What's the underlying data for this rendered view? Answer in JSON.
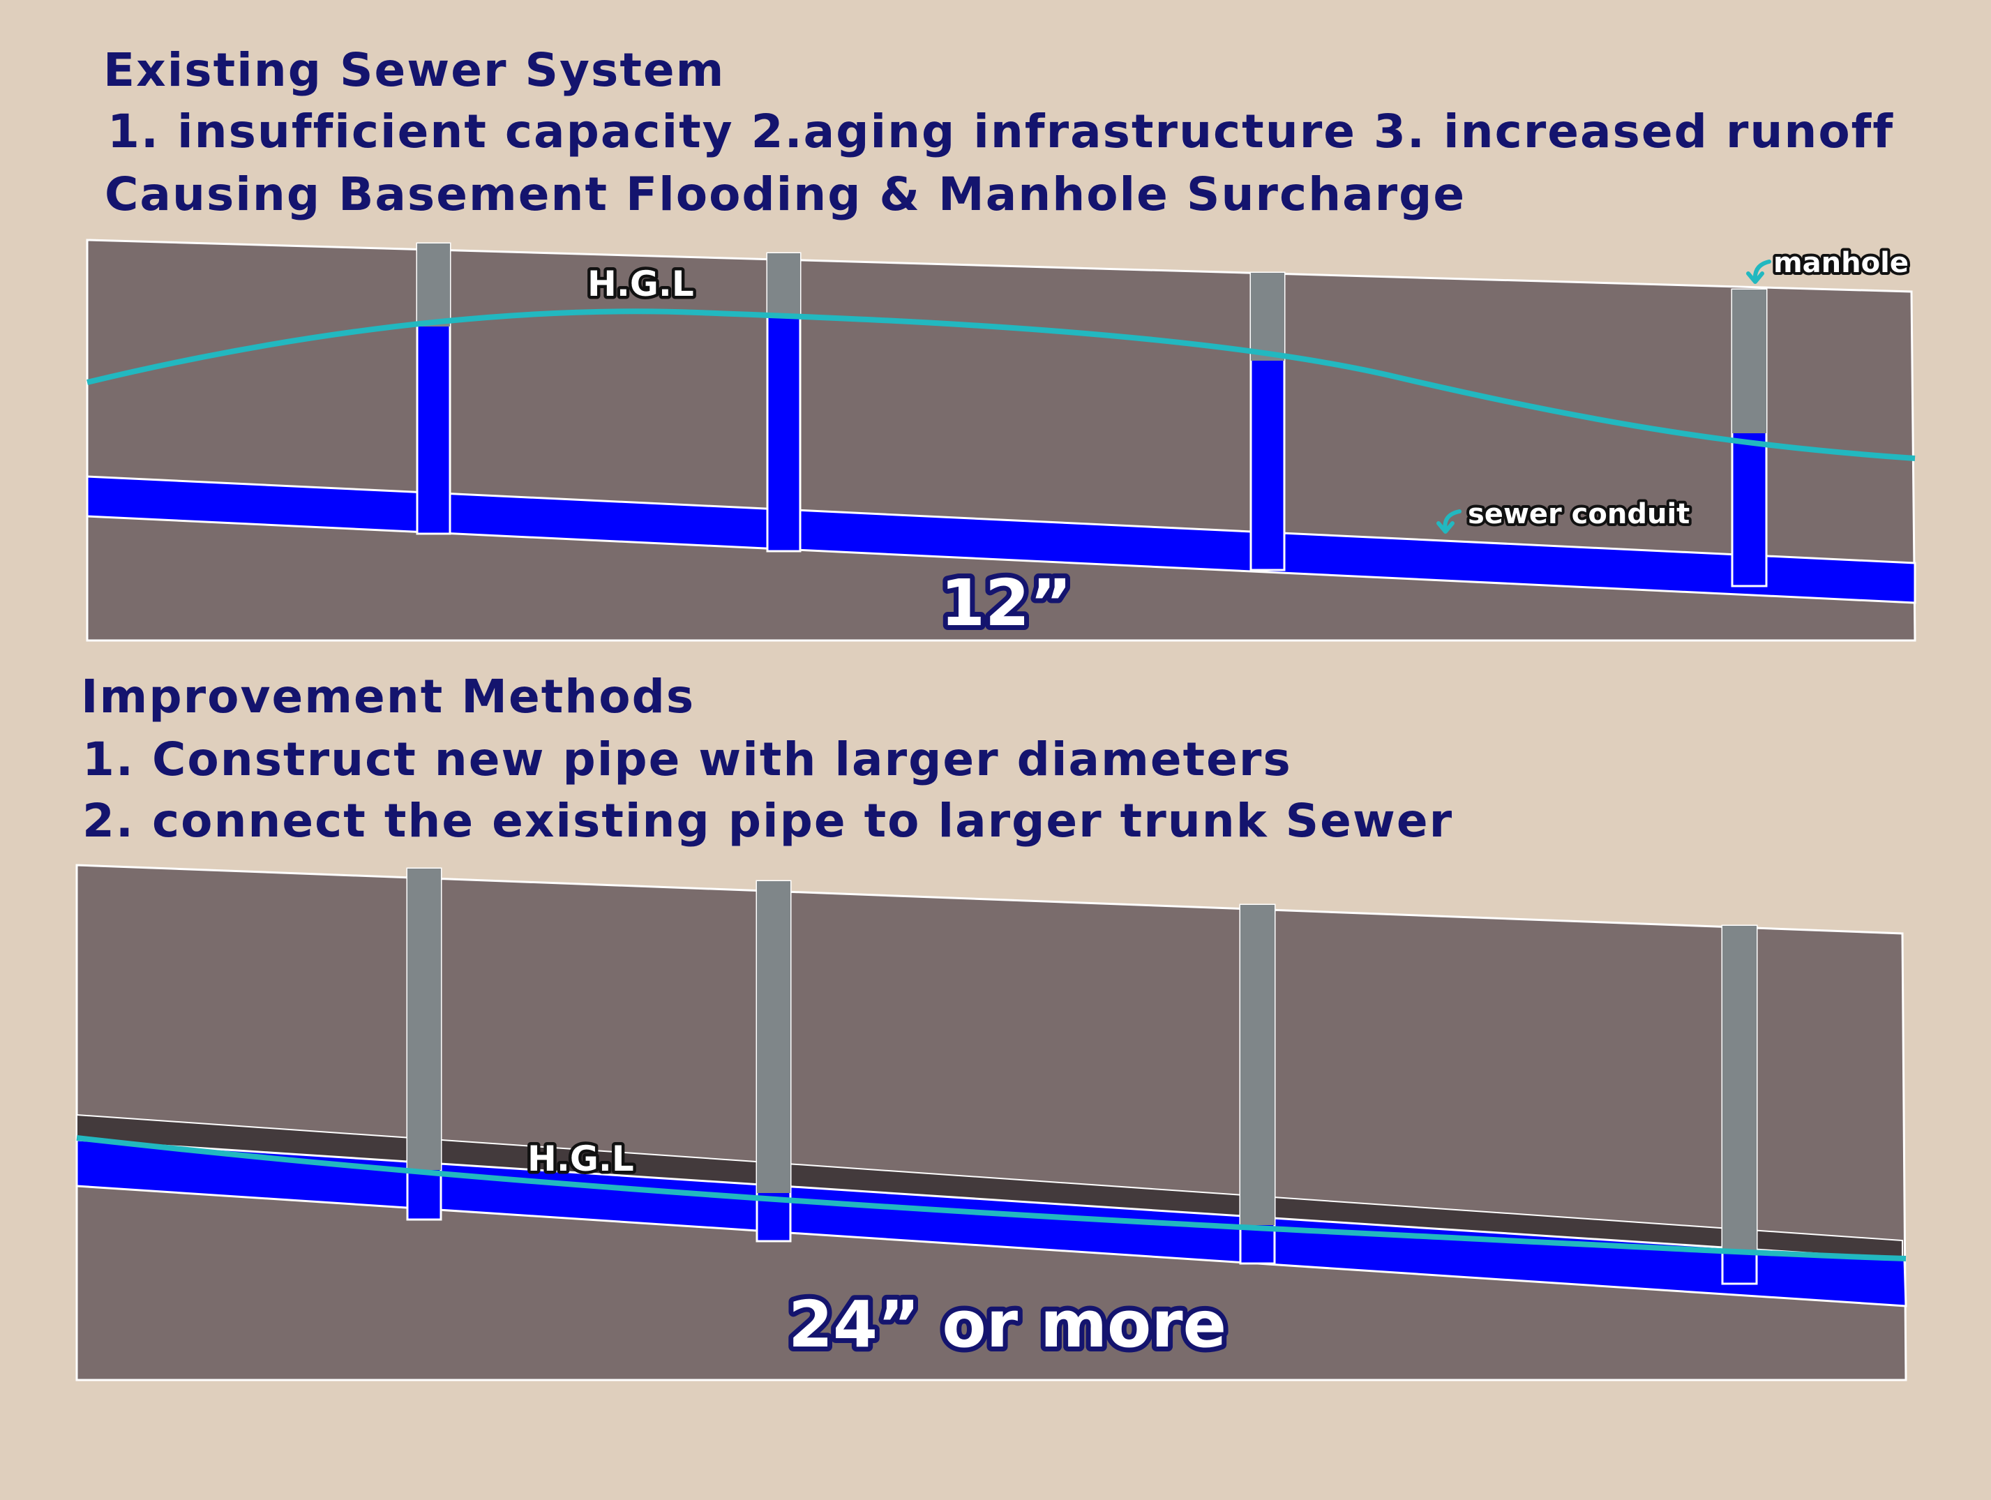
{
  "existing": {
    "title": "Existing Sewer System",
    "problems": "1. insufficient capacity 2.aging infrastructure 3. increased runoff",
    "consequence": "Causing Basement Flooding & Manhole Surcharge",
    "hgl_label": "H.G.L",
    "manhole_label": "manhole",
    "conduit_label": "sewer conduit",
    "pipe_size": "12”"
  },
  "improvement": {
    "title": "Improvement Methods",
    "method_1": "1. Construct new pipe with larger diameters",
    "method_2": "2. connect the existing pipe to larger trunk Sewer",
    "hgl_label": "H.G.L",
    "pipe_size": "24” or more"
  },
  "colors": {
    "background": "#dfcfbd",
    "ground": "#7a6c6c",
    "pipe": "#0000ff",
    "manhole_shaft": "#7f8689",
    "hgl_line": "#22b8c0",
    "old_pipe": "#433a3c",
    "heading_text": "#14146e"
  },
  "icons": [
    "curved-arrow-icon"
  ]
}
